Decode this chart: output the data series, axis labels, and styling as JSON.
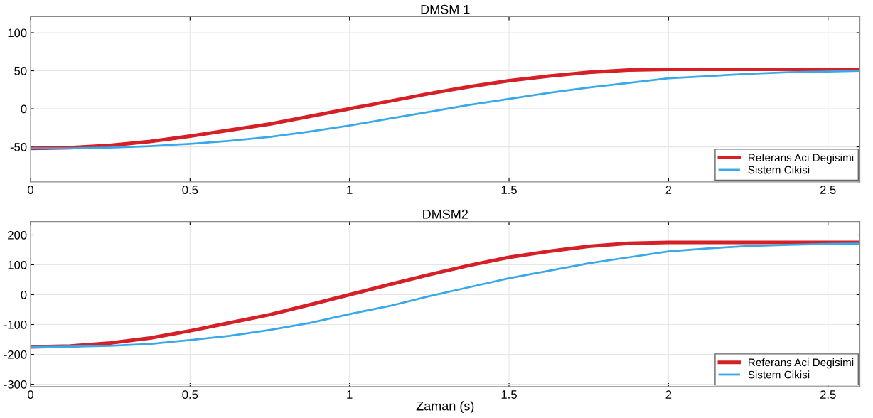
{
  "chart_data": [
    {
      "type": "line",
      "title": "DMSM 1",
      "xlim": [
        0,
        2.6
      ],
      "xticks": [
        0,
        0.5,
        1,
        1.5,
        2,
        2.5
      ],
      "ylim": [
        -96,
        121
      ],
      "yticks": [
        -50,
        0,
        50,
        100
      ],
      "grid": true,
      "legend": "bottom right",
      "marker": "none",
      "line_style": "solid",
      "series": [
        {
          "name": "Referans Aci Degisimi",
          "color": "#d42026",
          "x": [
            0,
            0.125,
            0.25,
            0.375,
            0.5,
            0.625,
            0.75,
            0.875,
            1.0,
            1.125,
            1.25,
            1.375,
            1.5,
            1.625,
            1.75,
            1.875,
            2.0,
            2.25,
            2.6
          ],
          "values": [
            -52,
            -51,
            -48,
            -43,
            -36,
            -28,
            -20,
            -10,
            0,
            10,
            20,
            29,
            37,
            43,
            48,
            51,
            52,
            52,
            52
          ]
        },
        {
          "name": "Sistem Cikisi",
          "color": "#38a8e8",
          "x": [
            0,
            0.125,
            0.25,
            0.375,
            0.5,
            0.625,
            0.75,
            0.875,
            1.0,
            1.125,
            1.25,
            1.375,
            1.5,
            1.625,
            1.75,
            1.875,
            2.0,
            2.125,
            2.25,
            2.375,
            2.5,
            2.6
          ],
          "values": [
            -52,
            -52,
            -51,
            -49,
            -46,
            -42,
            -37,
            -30,
            -22,
            -13,
            -4,
            5,
            13,
            21,
            28,
            34,
            40,
            43,
            46,
            48,
            49,
            50
          ]
        }
      ]
    },
    {
      "type": "line",
      "title": "DMSM2",
      "xlabel": "Zaman (s)",
      "xlim": [
        0,
        2.6
      ],
      "xticks": [
        0,
        0.5,
        1,
        1.5,
        2,
        2.5
      ],
      "ylim": [
        -308,
        245
      ],
      "yticks": [
        -300,
        -200,
        -100,
        0,
        100,
        200
      ],
      "grid": true,
      "legend": "bottom right",
      "marker": "none",
      "line_style": "solid",
      "series": [
        {
          "name": "Referans Aci Degisimi",
          "color": "#d42026",
          "x": [
            0,
            0.125,
            0.25,
            0.375,
            0.5,
            0.625,
            0.75,
            0.875,
            1.0,
            1.125,
            1.25,
            1.375,
            1.5,
            1.625,
            1.75,
            1.875,
            2.0,
            2.25,
            2.6
          ],
          "values": [
            -175,
            -172,
            -162,
            -145,
            -121,
            -94,
            -67,
            -34,
            0,
            34,
            67,
            98,
            125,
            145,
            162,
            172,
            175,
            175,
            175
          ]
        },
        {
          "name": "Sistem Cikisi",
          "color": "#38a8e8",
          "x": [
            0,
            0.125,
            0.25,
            0.375,
            0.5,
            0.625,
            0.75,
            0.875,
            1.0,
            1.125,
            1.25,
            1.375,
            1.5,
            1.625,
            1.75,
            1.875,
            2.0,
            2.125,
            2.25,
            2.375,
            2.5,
            2.6
          ],
          "values": [
            -175,
            -174,
            -171,
            -165,
            -152,
            -138,
            -118,
            -95,
            -65,
            -38,
            -5,
            25,
            55,
            80,
            105,
            125,
            145,
            155,
            163,
            167,
            170,
            171
          ]
        }
      ]
    }
  ]
}
